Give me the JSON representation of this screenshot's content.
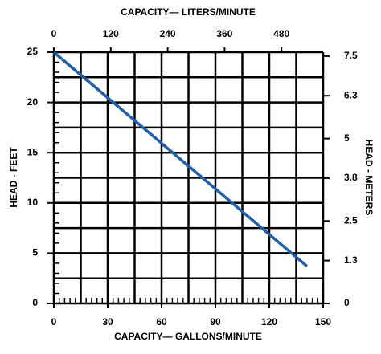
{
  "chart_data": {
    "type": "line",
    "x_label": "CAPACITY— GALLONS/MINUTE",
    "x2_label": "CAPACITY— LITERS/MINUTE",
    "y_label": "HEAD - FEET",
    "y2_label": "HEAD - METERS",
    "xlim": [
      0,
      150
    ],
    "xticks": [
      0,
      30,
      60,
      90,
      120,
      150
    ],
    "x2lim": [
      0,
      567.8
    ],
    "x2ticks": [
      0,
      120,
      240,
      360,
      480
    ],
    "ylim": [
      0,
      25
    ],
    "yticks": [
      0,
      5,
      10,
      15,
      20,
      25
    ],
    "y2lim": [
      0,
      7.62
    ],
    "y2ticks": [
      0,
      1.3,
      2.5,
      3.8,
      5,
      6.3,
      7.5
    ],
    "xgrid": [
      0,
      15,
      30,
      45,
      60,
      75,
      90,
      105,
      120,
      135,
      150
    ],
    "ygrid": [
      0,
      2.5,
      5,
      7.5,
      10,
      12.5,
      15,
      17.5,
      20,
      22.5,
      25
    ],
    "xminor_step": 3,
    "yminor_step": 1,
    "series": [
      {
        "color": "#1f5fa8",
        "x": [
          0,
          141
        ],
        "values": [
          25,
          3.7
        ]
      }
    ]
  }
}
